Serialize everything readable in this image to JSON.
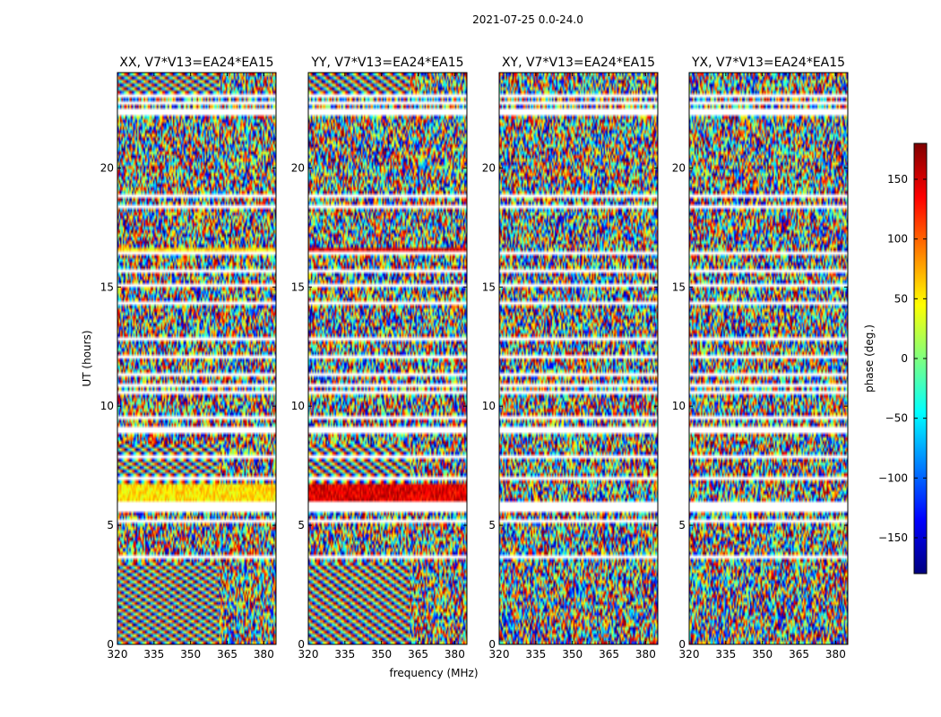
{
  "figure": {
    "suptitle": "2021-07-25 0.0-24.0",
    "xlabel": "frequency (MHz)",
    "ylabel": "UT (hours)",
    "colorbar_label": "phase (deg.)",
    "colorbar_ticks": [
      150,
      100,
      50,
      0,
      -50,
      -100,
      -150
    ],
    "colorbar_range": [
      -180,
      180
    ],
    "colormap": "jet",
    "colormap_colors": [
      "#00007f",
      "#0000ff",
      "#007fff",
      "#00ffff",
      "#7fff7f",
      "#ffff00",
      "#ff7f00",
      "#ff0000",
      "#7f0000"
    ]
  },
  "chart_data": [
    {
      "type": "heatmap",
      "title": "XX, V7*V13=EA24*EA15",
      "xlim": [
        320,
        385
      ],
      "ylim": [
        0,
        24
      ],
      "xticks": [
        320,
        335,
        350,
        365,
        380
      ],
      "yticks": [
        0,
        5,
        10,
        15,
        20
      ],
      "value": "phase (deg.)",
      "structure": "coherent fringes at low UT and around 6-8 h; noisy elsewhere; flagged gaps as white rows"
    },
    {
      "type": "heatmap",
      "title": "YY, V7*V13=EA24*EA15",
      "xlim": [
        320,
        385
      ],
      "ylim": [
        0,
        24
      ],
      "xticks": [
        320,
        335,
        350,
        365,
        380
      ],
      "yticks": [
        0,
        5,
        10,
        15,
        20
      ],
      "value": "phase (deg.)",
      "structure": "coherent fringes at low UT; near +180 deg band around 6-7 h; flagged gaps as white rows"
    },
    {
      "type": "heatmap",
      "title": "XY, V7*V13=EA24*EA15",
      "xlim": [
        320,
        385
      ],
      "ylim": [
        0,
        24
      ],
      "xticks": [
        320,
        335,
        350,
        365,
        380
      ],
      "yticks": [
        0,
        5,
        10,
        15,
        20
      ],
      "value": "phase (deg.)",
      "structure": "mostly noise-like phase; flagged gaps as white rows"
    },
    {
      "type": "heatmap",
      "title": "YX, V7*V13=EA24*EA15",
      "xlim": [
        320,
        385
      ],
      "ylim": [
        0,
        24
      ],
      "xticks": [
        320,
        335,
        350,
        365,
        380
      ],
      "yticks": [
        0,
        5,
        10,
        15,
        20
      ],
      "value": "phase (deg.)",
      "structure": "mostly noise-like phase; flagged gaps as white rows"
    }
  ],
  "flag_gaps_ut": [
    [
      0.85,
      0.95
    ],
    [
      1.95,
      2.02
    ],
    [
      3.3,
      3.35
    ],
    [
      3.55,
      3.75
    ],
    [
      4.5,
      4.56
    ],
    [
      5.15,
      5.2
    ],
    [
      5.55,
      5.95
    ],
    [
      6.85,
      7.05
    ],
    [
      7.3,
      7.35
    ],
    [
      7.85,
      7.9
    ],
    [
      8.35,
      8.45
    ],
    [
      8.85,
      8.95
    ],
    [
      9.05,
      9.12
    ],
    [
      9.5,
      9.56
    ],
    [
      10.15,
      10.2
    ],
    [
      10.55,
      10.6
    ],
    [
      10.75,
      10.95
    ],
    [
      11.3,
      11.36
    ],
    [
      12.05,
      12.1
    ],
    [
      12.8,
      12.86
    ],
    [
      13.15,
      13.2
    ],
    [
      13.45,
      13.55
    ],
    [
      14.3,
      14.36
    ],
    [
      15.05,
      15.1
    ],
    [
      15.55,
      15.8
    ],
    [
      16.4,
      16.46
    ],
    [
      17.2,
      17.26
    ],
    [
      17.55,
      17.6
    ],
    [
      18.0,
      18.06
    ],
    [
      18.35,
      18.45
    ],
    [
      18.75,
      18.95
    ],
    [
      22.25,
      22.5
    ],
    [
      22.7,
      22.75
    ],
    [
      22.95,
      23.05
    ],
    [
      23.4,
      23.45
    ]
  ]
}
